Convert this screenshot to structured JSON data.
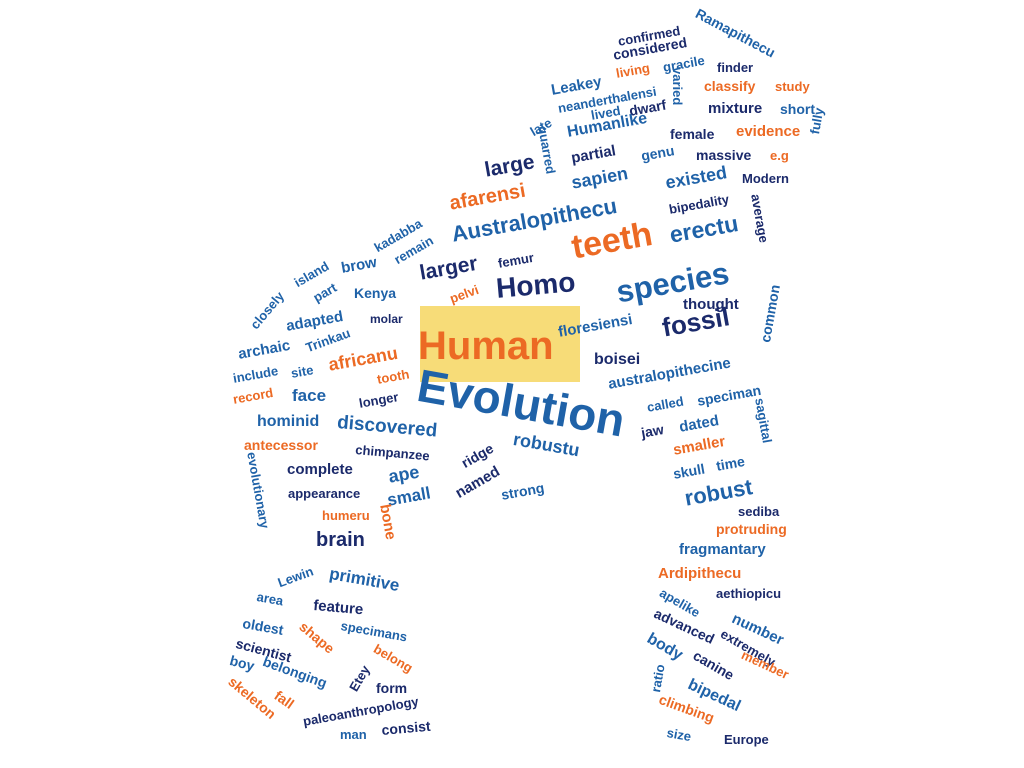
{
  "palette": {
    "navy": "#1b2a6b",
    "blue": "#1f62a8",
    "orange": "#ec6a24",
    "teal": "#3c78b4",
    "highlight": "#f7dc78"
  },
  "words": [
    {
      "text": "confirmed",
      "c": "navy"
    },
    {
      "text": "Ramapithecu",
      "c": "blue"
    },
    {
      "text": "considered",
      "c": "navy"
    },
    {
      "text": "living",
      "c": "orange"
    },
    {
      "text": "gracile",
      "c": "blue"
    },
    {
      "text": "finder",
      "c": "navy"
    },
    {
      "text": "Leakey",
      "c": "blue"
    },
    {
      "text": "classify",
      "c": "orange"
    },
    {
      "text": "study",
      "c": "orange"
    },
    {
      "text": "neanderthalensi",
      "c": "blue"
    },
    {
      "text": "varied",
      "c": "blue"
    },
    {
      "text": "lived",
      "c": "blue"
    },
    {
      "text": "dwarf",
      "c": "navy"
    },
    {
      "text": "mixture",
      "c": "navy"
    },
    {
      "text": "short",
      "c": "blue"
    },
    {
      "text": "late",
      "c": "blue"
    },
    {
      "text": "Humanlike",
      "c": "blue"
    },
    {
      "text": "female",
      "c": "navy"
    },
    {
      "text": "evidence",
      "c": "orange"
    },
    {
      "text": "quarred",
      "c": "blue"
    },
    {
      "text": "partial",
      "c": "navy"
    },
    {
      "text": "genu",
      "c": "blue"
    },
    {
      "text": "massive",
      "c": "navy"
    },
    {
      "text": "e.g",
      "c": "orange"
    },
    {
      "text": "fully",
      "c": "blue"
    },
    {
      "text": "large",
      "c": "navy"
    },
    {
      "text": "sapien",
      "c": "blue"
    },
    {
      "text": "existed",
      "c": "blue"
    },
    {
      "text": "Modern",
      "c": "navy"
    },
    {
      "text": "afarensi",
      "c": "orange"
    },
    {
      "text": "bipedality",
      "c": "navy"
    },
    {
      "text": "Australopithecu",
      "c": "blue"
    },
    {
      "text": "average",
      "c": "navy"
    },
    {
      "text": "kadabba",
      "c": "blue"
    },
    {
      "text": "remain",
      "c": "blue"
    },
    {
      "text": "teeth",
      "c": "orange"
    },
    {
      "text": "erectu",
      "c": "blue"
    },
    {
      "text": "island",
      "c": "blue"
    },
    {
      "text": "brow",
      "c": "blue"
    },
    {
      "text": "larger",
      "c": "navy"
    },
    {
      "text": "femur",
      "c": "navy"
    },
    {
      "text": "closely",
      "c": "blue"
    },
    {
      "text": "part",
      "c": "blue"
    },
    {
      "text": "Kenya",
      "c": "blue"
    },
    {
      "text": "pelvi",
      "c": "orange"
    },
    {
      "text": "Homo",
      "c": "navy"
    },
    {
      "text": "species",
      "c": "blue"
    },
    {
      "text": "thought",
      "c": "navy"
    },
    {
      "text": "common",
      "c": "blue"
    },
    {
      "text": "adapted",
      "c": "blue"
    },
    {
      "text": "molar",
      "c": "navy"
    },
    {
      "text": "Human",
      "c": "orange",
      "hl": true
    },
    {
      "text": "floresiensi",
      "c": "blue"
    },
    {
      "text": "fossil",
      "c": "navy"
    },
    {
      "text": "archaic",
      "c": "blue"
    },
    {
      "text": "Trinkau",
      "c": "blue"
    },
    {
      "text": "africanu",
      "c": "orange"
    },
    {
      "text": "boisei",
      "c": "navy"
    },
    {
      "text": "include",
      "c": "blue"
    },
    {
      "text": "site",
      "c": "blue"
    },
    {
      "text": "tooth",
      "c": "orange"
    },
    {
      "text": "australopithecine",
      "c": "blue"
    },
    {
      "text": "Evolution",
      "c": "blue"
    },
    {
      "text": "record",
      "c": "orange"
    },
    {
      "text": "face",
      "c": "blue"
    },
    {
      "text": "longer",
      "c": "navy"
    },
    {
      "text": "called",
      "c": "blue"
    },
    {
      "text": "speciman",
      "c": "blue"
    },
    {
      "text": "hominid",
      "c": "blue"
    },
    {
      "text": "discovered",
      "c": "blue"
    },
    {
      "text": "jaw",
      "c": "navy"
    },
    {
      "text": "dated",
      "c": "blue"
    },
    {
      "text": "sagittal",
      "c": "blue"
    },
    {
      "text": "antecessor",
      "c": "orange"
    },
    {
      "text": "chimpanzee",
      "c": "navy"
    },
    {
      "text": "robustu",
      "c": "blue"
    },
    {
      "text": "smaller",
      "c": "orange"
    },
    {
      "text": "ridge",
      "c": "navy"
    },
    {
      "text": "skull",
      "c": "blue"
    },
    {
      "text": "time",
      "c": "blue"
    },
    {
      "text": "evolutionary",
      "c": "blue"
    },
    {
      "text": "complete",
      "c": "navy"
    },
    {
      "text": "ape",
      "c": "blue"
    },
    {
      "text": "named",
      "c": "navy"
    },
    {
      "text": "robust",
      "c": "blue"
    },
    {
      "text": "strong",
      "c": "blue"
    },
    {
      "text": "appearance",
      "c": "navy"
    },
    {
      "text": "small",
      "c": "blue"
    },
    {
      "text": "sediba",
      "c": "navy"
    },
    {
      "text": "humeru",
      "c": "orange"
    },
    {
      "text": "protruding",
      "c": "orange"
    },
    {
      "text": "bone",
      "c": "orange"
    },
    {
      "text": "brain",
      "c": "navy"
    },
    {
      "text": "fragmantary",
      "c": "blue"
    },
    {
      "text": "Ardipithecu",
      "c": "orange"
    },
    {
      "text": "Lewin",
      "c": "blue"
    },
    {
      "text": "primitive",
      "c": "blue"
    },
    {
      "text": "aethiopicu",
      "c": "navy"
    },
    {
      "text": "feature",
      "c": "navy"
    },
    {
      "text": "area",
      "c": "blue"
    },
    {
      "text": "apelike",
      "c": "blue"
    },
    {
      "text": "oldest",
      "c": "blue"
    },
    {
      "text": "number",
      "c": "blue"
    },
    {
      "text": "specimans",
      "c": "blue"
    },
    {
      "text": "extremely",
      "c": "navy"
    },
    {
      "text": "advanced",
      "c": "navy"
    },
    {
      "text": "scientist",
      "c": "navy"
    },
    {
      "text": "shape",
      "c": "orange"
    },
    {
      "text": "belong",
      "c": "orange"
    },
    {
      "text": "member",
      "c": "orange"
    },
    {
      "text": "body",
      "c": "blue"
    },
    {
      "text": "canine",
      "c": "navy"
    },
    {
      "text": "boy",
      "c": "blue"
    },
    {
      "text": "belonging",
      "c": "blue"
    },
    {
      "text": "Etey",
      "c": "navy"
    },
    {
      "text": "form",
      "c": "navy"
    },
    {
      "text": "ratio",
      "c": "blue"
    },
    {
      "text": "bipedal",
      "c": "blue"
    },
    {
      "text": "skeleton",
      "c": "orange"
    },
    {
      "text": "fall",
      "c": "orange"
    },
    {
      "text": "paleoanthropology",
      "c": "navy"
    },
    {
      "text": "climbing",
      "c": "orange"
    },
    {
      "text": "man",
      "c": "blue"
    },
    {
      "text": "consist",
      "c": "navy"
    },
    {
      "text": "size",
      "c": "blue"
    },
    {
      "text": "Europe",
      "c": "navy"
    }
  ]
}
